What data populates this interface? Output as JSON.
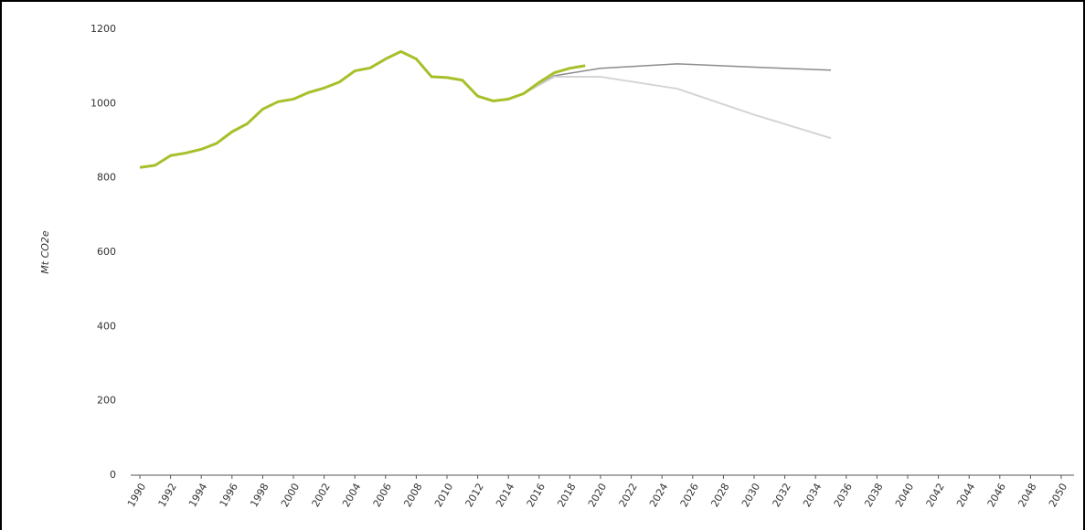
{
  "chart_data": {
    "type": "line",
    "y_label": "Mt CO2e",
    "xlim": [
      1990,
      2050
    ],
    "xticks": [
      1990,
      1992,
      1994,
      1996,
      1998,
      2000,
      2002,
      2004,
      2006,
      2008,
      2010,
      2012,
      2014,
      2016,
      2018,
      2020,
      2022,
      2024,
      2026,
      2028,
      2030,
      2032,
      2034,
      2036,
      2038,
      2040,
      2042,
      2044,
      2046,
      2048,
      2050
    ],
    "ylim": [
      0,
      1200
    ],
    "yticks": [
      0,
      200,
      400,
      600,
      800,
      1000,
      1200
    ],
    "grid": false,
    "series": [
      {
        "color": "#8c8c8c",
        "width": 1.5,
        "x": [
          2015,
          2017,
          2020,
          2025,
          2030,
          2035
        ],
        "values": [
          1027,
          1075,
          1095,
          1107,
          1098,
          1090
        ]
      },
      {
        "color": "#d4d4d4",
        "width": 2,
        "x": [
          2015,
          2017,
          2020,
          2025,
          2030,
          2035
        ],
        "values": [
          1027,
          1072,
          1072,
          1040,
          970,
          907
        ]
      },
      {
        "color": "#a8bf2a",
        "width": 3,
        "x": [
          1990,
          1991,
          1992,
          1993,
          1994,
          1995,
          1996,
          1997,
          1998,
          1999,
          2000,
          2001,
          2002,
          2003,
          2004,
          2005,
          2006,
          2007,
          2008,
          2009,
          2010,
          2011,
          2012,
          2013,
          2014,
          2015,
          2016,
          2017,
          2018,
          2019
        ],
        "values": [
          828,
          834,
          860,
          867,
          877,
          893,
          924,
          946,
          985,
          1005,
          1012,
          1030,
          1042,
          1058,
          1088,
          1096,
          1120,
          1140,
          1120,
          1072,
          1070,
          1063,
          1020,
          1007,
          1012,
          1027,
          1057,
          1083,
          1095,
          1102
        ]
      }
    ]
  }
}
